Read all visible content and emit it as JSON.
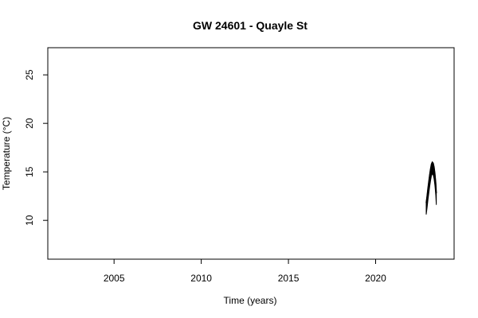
{
  "chart_data": {
    "type": "line",
    "title": "GW 24601 - Quayle St",
    "xlabel": "Time (years)",
    "ylabel": "Temperature (°C)",
    "xlim": [
      2001.2,
      2024.5
    ],
    "ylim": [
      6.0,
      27.8
    ],
    "xticks": [
      "2005",
      "2010",
      "2015",
      "2020"
    ],
    "yticks": [
      "10",
      "15",
      "20",
      "25"
    ],
    "grid": false,
    "legend": "none",
    "line_color": "#000000",
    "series": [
      {
        "x": [
          2022.9,
          2022.95,
          2023.0,
          2023.05,
          2023.1,
          2023.15,
          2023.2,
          2023.25,
          2023.3,
          2023.35,
          2023.4,
          2023.45,
          2023.48
        ],
        "y": [
          11.8,
          12.5,
          13.3,
          14.0,
          14.7,
          15.3,
          15.8,
          16.0,
          15.9,
          15.5,
          14.8,
          13.8,
          12.8
        ]
      }
    ]
  }
}
